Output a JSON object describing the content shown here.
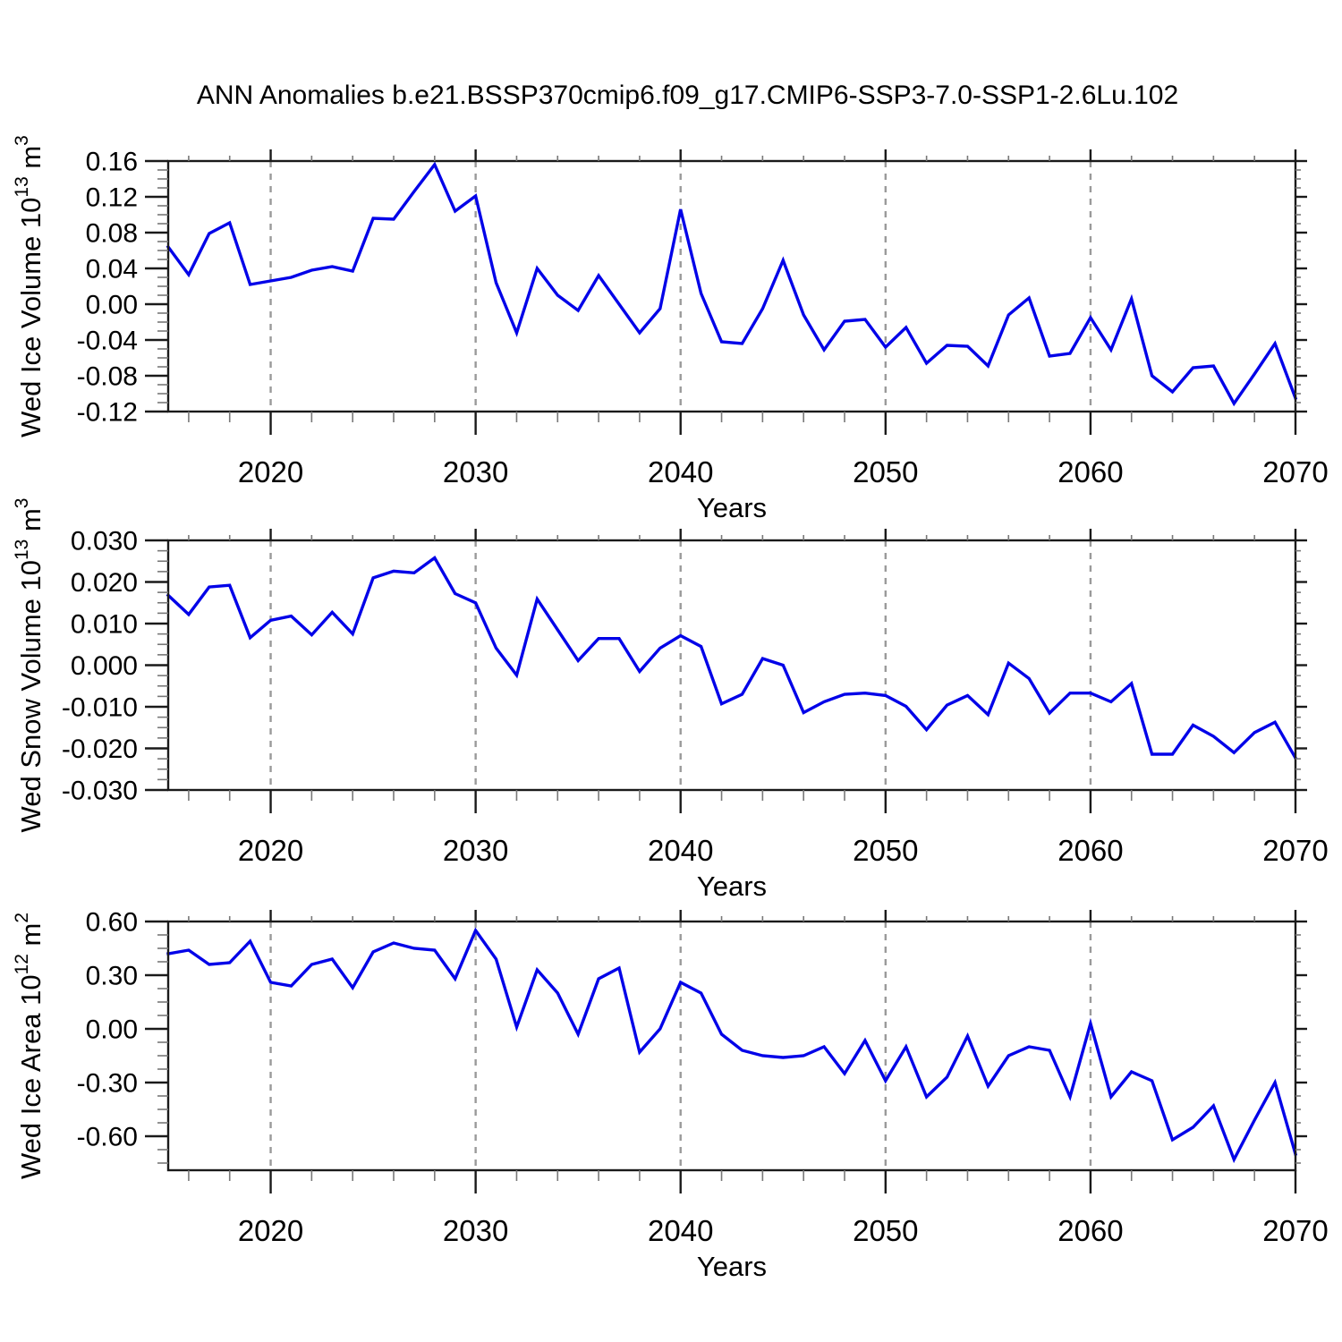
{
  "title": "ANN Anomalies b.e21.BSSP370cmip6.f09_g17.CMIP6-SSP3-7.0-SSP1-2.6Lu.102",
  "colors": {
    "line": "#0202e8",
    "axis": "#1a1a1a",
    "minor_tick": "#787878",
    "grid": "#9a9a9a",
    "background": "#ffffff",
    "text": "#000000"
  },
  "x_axis": {
    "label": "Years",
    "start": 2015,
    "end": 2070,
    "step": 1,
    "major_ticks": [
      2020,
      2030,
      2040,
      2050,
      2060,
      2070
    ],
    "tick_labels": [
      "2020",
      "2030",
      "2040",
      "2050",
      "2060",
      "2070"
    ],
    "minor_step_years": 2,
    "gridline_years": [
      2020,
      2030,
      2040,
      2050,
      2060
    ],
    "grid_style": "dashed"
  },
  "chart_data": [
    {
      "type": "line",
      "panel": "ice-volume",
      "ylabel": "Wed Ice Volume 10^13 m^3",
      "ylabel_parts": [
        {
          "t": "Wed Ice Volume 10"
        },
        {
          "t": "13",
          "sup": true
        },
        {
          "t": " m"
        },
        {
          "t": "3",
          "sup": true
        }
      ],
      "ylim": [
        -0.12,
        0.16
      ],
      "y_major_step": 0.04,
      "y_minor_step": 0.01,
      "y_decimals": 2,
      "values": [
        0.064,
        0.033,
        0.079,
        0.091,
        0.022,
        0.026,
        0.03,
        0.038,
        0.042,
        0.037,
        0.096,
        0.095,
        0.126,
        0.156,
        0.104,
        0.121,
        0.024,
        -0.032,
        0.04,
        0.01,
        -0.007,
        0.032,
        0.0,
        -0.032,
        -0.005,
        0.106,
        0.012,
        -0.042,
        -0.044,
        -0.005,
        0.049,
        -0.012,
        -0.051,
        -0.019,
        -0.017,
        -0.048,
        -0.026,
        -0.066,
        -0.046,
        -0.047,
        -0.069,
        -0.012,
        0.007,
        -0.058,
        -0.055,
        -0.015,
        -0.051,
        0.006,
        -0.08,
        -0.098,
        -0.071,
        -0.069,
        -0.111,
        -0.078,
        -0.044,
        -0.105
      ]
    },
    {
      "type": "line",
      "panel": "snow-volume",
      "ylabel": "Wed Snow Volume 10^13 m^3",
      "ylabel_parts": [
        {
          "t": "Wed Snow Volume 10"
        },
        {
          "t": "13",
          "sup": true
        },
        {
          "t": " m"
        },
        {
          "t": "3",
          "sup": true
        }
      ],
      "ylim": [
        -0.03,
        0.03
      ],
      "y_major_step": 0.01,
      "y_minor_step": 0.0025,
      "y_decimals": 3,
      "values": [
        0.0168,
        0.0122,
        0.0188,
        0.0192,
        0.0066,
        0.0108,
        0.0118,
        0.0073,
        0.0127,
        0.0075,
        0.021,
        0.0226,
        0.0222,
        0.0258,
        0.0172,
        0.015,
        0.0041,
        -0.0024,
        0.0159,
        0.0085,
        0.0011,
        0.0064,
        0.0064,
        -0.0015,
        0.0041,
        0.0071,
        0.0045,
        -0.0093,
        -0.007,
        0.0016,
        0.0,
        -0.0114,
        -0.0088,
        -0.007,
        -0.0067,
        -0.0073,
        -0.0099,
        -0.0155,
        -0.0096,
        -0.0073,
        -0.0119,
        0.0005,
        -0.0032,
        -0.0115,
        -0.0067,
        -0.0067,
        -0.0088,
        -0.0044,
        -0.0214,
        -0.0214,
        -0.0144,
        -0.0171,
        -0.021,
        -0.0162,
        -0.0137,
        -0.0223
      ]
    },
    {
      "type": "line",
      "panel": "ice-area",
      "ylabel": "Wed Ice Area 10^12 m^2",
      "ylabel_parts": [
        {
          "t": "Wed Ice Area 10"
        },
        {
          "t": "12",
          "sup": true
        },
        {
          "t": " m"
        },
        {
          "t": "2",
          "sup": true
        }
      ],
      "ylim": [
        -0.79,
        0.6
      ],
      "y_major_step": 0.3,
      "y_minor_step": 0.075,
      "y_decimals": 2,
      "values": [
        0.42,
        0.44,
        0.36,
        0.37,
        0.49,
        0.26,
        0.24,
        0.36,
        0.39,
        0.23,
        0.43,
        0.48,
        0.45,
        0.44,
        0.28,
        0.55,
        0.39,
        0.01,
        0.33,
        0.2,
        -0.03,
        0.28,
        0.34,
        -0.13,
        0.0,
        0.26,
        0.2,
        -0.03,
        -0.12,
        -0.15,
        -0.16,
        -0.15,
        -0.1,
        -0.25,
        -0.065,
        -0.29,
        -0.1,
        -0.38,
        -0.27,
        -0.04,
        -0.32,
        -0.15,
        -0.1,
        -0.12,
        -0.38,
        0.03,
        -0.38,
        -0.24,
        -0.29,
        -0.62,
        -0.55,
        -0.43,
        -0.73,
        -0.51,
        -0.3,
        -0.7
      ]
    }
  ]
}
